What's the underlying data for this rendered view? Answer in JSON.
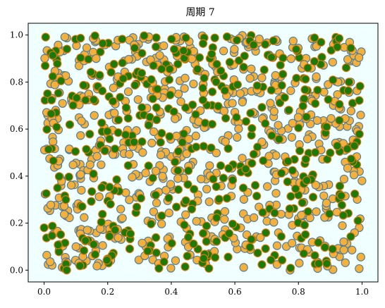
{
  "chart_data": {
    "type": "scatter",
    "title": "周期 7",
    "xlabel": "",
    "ylabel": "",
    "xlim": [
      -0.05,
      1.05
    ],
    "ylim": [
      -0.05,
      1.05
    ],
    "x_ticks": [
      "0.0",
      "0.2",
      "0.4",
      "0.6",
      "0.8",
      "1.0"
    ],
    "y_ticks": [
      "0.0",
      "0.2",
      "0.4",
      "0.6",
      "0.8",
      "1.0"
    ],
    "grid": false,
    "legend": "none",
    "plot_background": "#f0ffff",
    "series": [
      {
        "marker_fill": "#f4b03a",
        "marker_edge": "#4a7a9a",
        "count": 660,
        "seed": 7
      },
      {
        "marker_fill": "#1e7a08",
        "marker_edge": "#e07a10",
        "count": 440,
        "seed": 13
      }
    ]
  }
}
